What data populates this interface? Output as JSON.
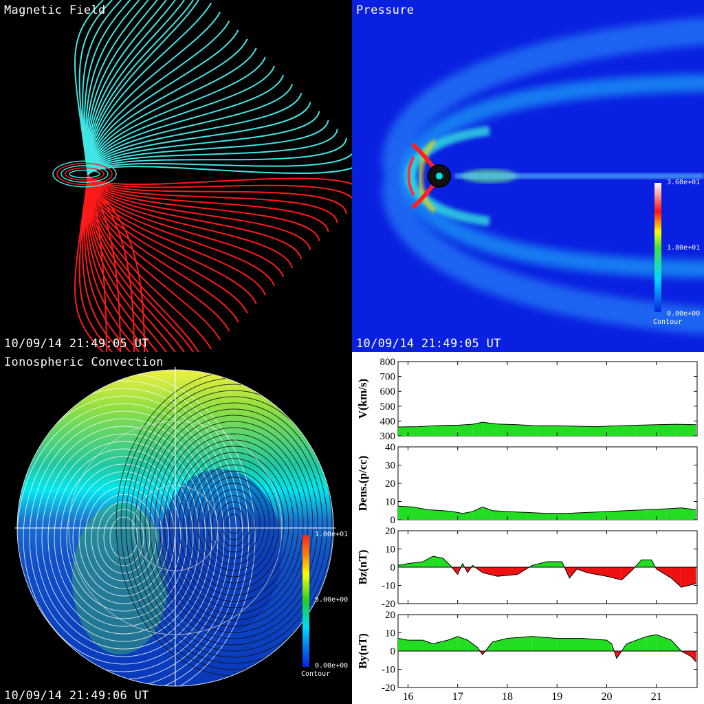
{
  "magnetic": {
    "title": "Magnetic Field",
    "timestamp": "10/09/14 21:49:05 UT",
    "colors": {
      "north": "#40e6e6",
      "south": "#ff1a1a"
    }
  },
  "pressure": {
    "title": "Pressure",
    "timestamp": "10/09/14 21:49:05 UT",
    "colorbar": {
      "max": "3.60e+01",
      "mid": "1.80e+01",
      "min": "0.00e+00",
      "label": "Contour"
    }
  },
  "ionosphere": {
    "title": "Ionospheric Convection",
    "timestamp": "10/09/14 21:49:06 UT",
    "colorbar": {
      "max": "1.00e+01",
      "mid": "5.00e+00",
      "min": "0.00e+00",
      "label": "Contour"
    }
  },
  "chart_data": [
    {
      "type": "area",
      "ylabel": "V(km/s)",
      "ylim": [
        300,
        800
      ],
      "yticks": [
        300,
        400,
        500,
        600,
        700,
        800
      ],
      "x": [
        15.8,
        16.2,
        16.5,
        16.8,
        17.0,
        17.3,
        17.5,
        17.8,
        18.2,
        18.6,
        19.0,
        19.4,
        19.8,
        20.2,
        20.6,
        21.0,
        21.4,
        21.8
      ],
      "values": [
        360,
        362,
        368,
        372,
        372,
        378,
        392,
        380,
        375,
        368,
        368,
        365,
        362,
        368,
        372,
        375,
        378,
        375
      ]
    },
    {
      "type": "area",
      "ylabel": "Dens.(p/cc)",
      "ylim": [
        0,
        40
      ],
      "yticks": [
        0,
        10,
        20,
        30,
        40
      ],
      "x": [
        15.8,
        16.1,
        16.4,
        16.7,
        16.9,
        17.1,
        17.3,
        17.5,
        17.7,
        18.0,
        18.4,
        18.8,
        19.2,
        19.6,
        20.0,
        20.4,
        20.8,
        21.2,
        21.5,
        21.8
      ],
      "values": [
        7.5,
        7.0,
        5.5,
        5.0,
        4.5,
        3.5,
        4.5,
        7.0,
        5.0,
        4.5,
        4.0,
        3.5,
        3.5,
        4.0,
        4.5,
        5.0,
        5.5,
        6.0,
        6.5,
        5.5
      ]
    },
    {
      "type": "area",
      "ylabel": "Bz(nT)",
      "ylim": [
        -20,
        20
      ],
      "yticks": [
        -20,
        -10,
        0,
        10,
        20
      ],
      "x": [
        15.8,
        16.0,
        16.3,
        16.5,
        16.7,
        16.85,
        17.0,
        17.1,
        17.2,
        17.3,
        17.5,
        17.8,
        18.2,
        18.5,
        18.8,
        19.1,
        19.25,
        19.4,
        19.6,
        19.8,
        20.0,
        20.3,
        20.5,
        20.7,
        20.9,
        21.0,
        21.3,
        21.5,
        21.8
      ],
      "values": [
        1,
        2,
        3,
        6,
        5,
        1,
        -4,
        2,
        -3,
        1,
        -3,
        -5,
        -4,
        1,
        3,
        3,
        -6,
        -1,
        -3,
        -4,
        -5,
        -7,
        -2,
        4,
        4,
        -1,
        -6,
        -11,
        -9
      ]
    },
    {
      "type": "area",
      "ylabel": "By(nT)",
      "ylim": [
        -20,
        20
      ],
      "yticks": [
        -20,
        -10,
        0,
        10,
        20
      ],
      "x": [
        15.8,
        16.0,
        16.3,
        16.5,
        16.8,
        17.0,
        17.2,
        17.4,
        17.5,
        17.7,
        18.0,
        18.5,
        19.0,
        19.5,
        20.0,
        20.1,
        20.2,
        20.4,
        20.8,
        21.0,
        21.3,
        21.5,
        21.7,
        21.8
      ],
      "values": [
        7,
        6,
        6,
        4,
        6,
        8,
        6,
        2,
        -2,
        5,
        7,
        8,
        7,
        7,
        6,
        4,
        -4,
        4,
        8,
        9,
        6,
        0,
        -3,
        -6
      ]
    }
  ],
  "x_axis": {
    "ticks": [
      16,
      17,
      18,
      19,
      20,
      21
    ],
    "xlim": [
      15.8,
      21.82
    ]
  }
}
